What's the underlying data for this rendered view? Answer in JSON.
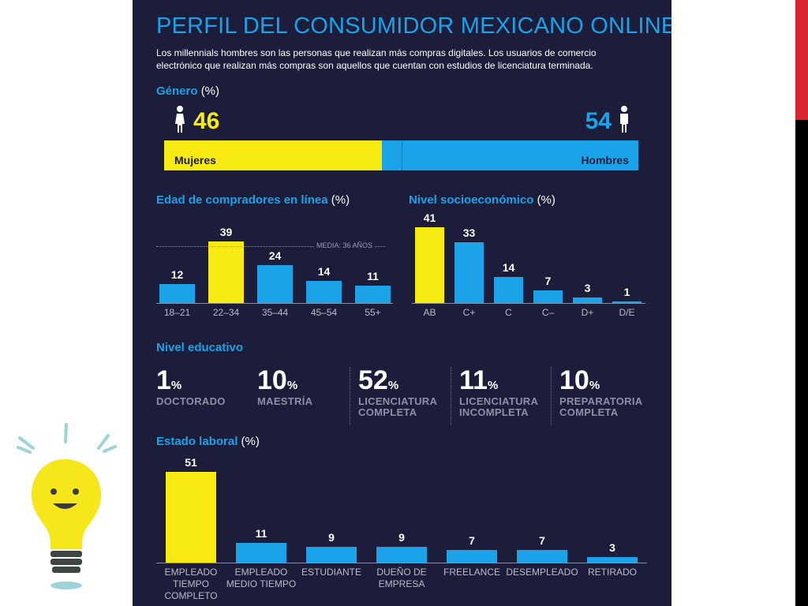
{
  "title": "PERFIL DEL CONSUMIDOR MEXICANO ONLINE",
  "subtitle": "Los millennials hombres son las personas que realizan más compras digitales. Los usuarios de comercio electrónico que realizan más compras son aquellos que cuentan con estudios de licenciatura terminada.",
  "genero": {
    "title": "Género",
    "unit": "(%)",
    "mujeres_value": "46",
    "hombres_value": "54",
    "mujeres_label": "Mujeres",
    "hombres_label": "Hombres"
  },
  "colors": {
    "background": "#1b1d3a",
    "accent_blue": "#1aa3e8",
    "highlight_yellow": "#f6ea12",
    "red_strip": "#d9252f"
  },
  "educacion": {
    "title": "Nivel educativo",
    "items": [
      {
        "value": "1",
        "unit": "%",
        "label_line1": "DOCTORADO",
        "label_line2": ""
      },
      {
        "value": "10",
        "unit": "%",
        "label_line1": "MAESTRÍA",
        "label_line2": ""
      },
      {
        "value": "52",
        "unit": "%",
        "label_line1": "LICENCIATURA",
        "label_line2": "COMPLETA"
      },
      {
        "value": "11",
        "unit": "%",
        "label_line1": "LICENCIATURA",
        "label_line2": "INCOMPLETA"
      },
      {
        "value": "10",
        "unit": "%",
        "label_line1": "PREPARATORIA",
        "label_line2": "COMPLETA"
      }
    ]
  },
  "decoration": {
    "icon": "lightbulb-icon"
  },
  "chart_data": [
    {
      "type": "bar",
      "title": "Género",
      "unit": "(%)",
      "categories": [
        "Mujeres",
        "Hombres"
      ],
      "values": [
        46,
        54
      ],
      "stacked": true
    },
    {
      "type": "bar",
      "title": "Edad de compradores en línea",
      "unit": "(%)",
      "categories": [
        "18–21",
        "22–34",
        "35–44",
        "45–54",
        "55+"
      ],
      "values": [
        12,
        39,
        24,
        14,
        11
      ],
      "highlight_index": 1,
      "reference_line": {
        "value": 36,
        "label": "MEDIA: 36 AÑOS"
      },
      "ylim": [
        0,
        39
      ]
    },
    {
      "type": "bar",
      "title": "Nivel socioeconómico",
      "unit": "(%)",
      "categories": [
        "AB",
        "C+",
        "C",
        "C–",
        "D+",
        "D/E"
      ],
      "values": [
        41,
        33,
        14,
        7,
        3,
        1
      ],
      "highlight_index": 0,
      "ylim": [
        0,
        41
      ]
    },
    {
      "type": "bar",
      "title": "Estado laboral",
      "unit": "(%)",
      "categories": [
        [
          "EMPLEADO",
          "TIEMPO",
          "COMPLETO"
        ],
        [
          "EMPLEADO",
          "MEDIO TIEMPO"
        ],
        [
          "ESTUDIANTE"
        ],
        [
          "DUEÑO DE",
          "EMPRESA"
        ],
        [
          "FREELANCE"
        ],
        [
          "DESEMPLEADO"
        ],
        [
          "RETIRADO"
        ]
      ],
      "values": [
        51,
        11,
        9,
        9,
        7,
        7,
        3
      ],
      "highlight_index": 0,
      "ylim": [
        0,
        51
      ]
    }
  ]
}
